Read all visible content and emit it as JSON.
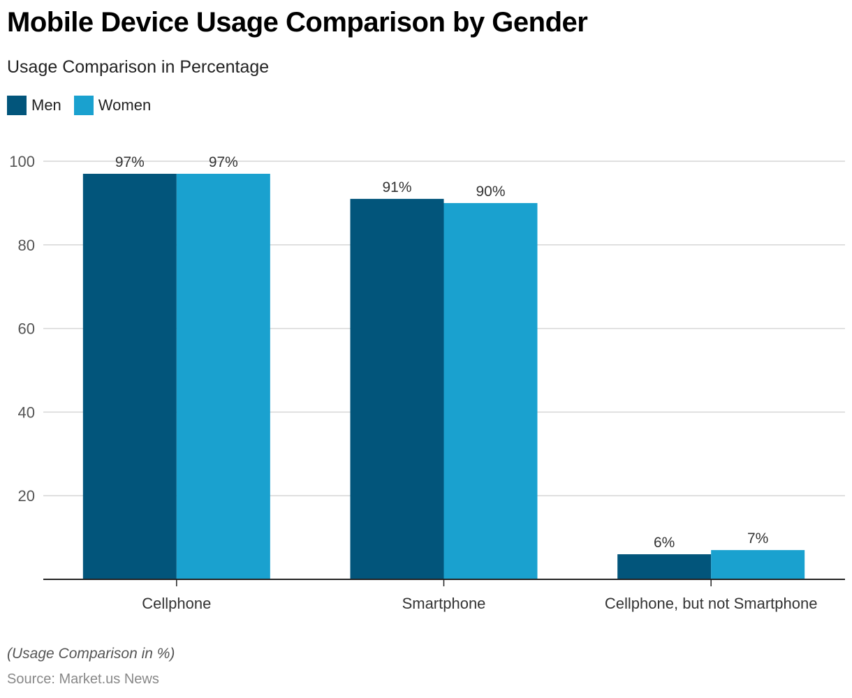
{
  "chart_data": {
    "type": "bar",
    "title": "Mobile Device Usage Comparison by Gender",
    "subtitle": "Usage Comparison in Percentage",
    "categories": [
      "Cellphone",
      "Smartphone",
      "Cellphone, but not Smartphone"
    ],
    "series": [
      {
        "name": "Men",
        "color": "#02557b",
        "values": [
          97,
          91,
          6
        ],
        "labels": [
          "97%",
          "91%",
          "6%"
        ]
      },
      {
        "name": "Women",
        "color": "#1aa1cf",
        "values": [
          97,
          90,
          7
        ],
        "labels": [
          "97%",
          "90%",
          "7%"
        ]
      }
    ],
    "xlabel": "",
    "ylabel": "",
    "ylim": [
      0,
      100
    ],
    "yticks": [
      20,
      40,
      60,
      80,
      100
    ],
    "grid": true,
    "legend_position": "top-left",
    "footnote": "(Usage Comparison in %)",
    "source": "Source: Market.us News"
  }
}
